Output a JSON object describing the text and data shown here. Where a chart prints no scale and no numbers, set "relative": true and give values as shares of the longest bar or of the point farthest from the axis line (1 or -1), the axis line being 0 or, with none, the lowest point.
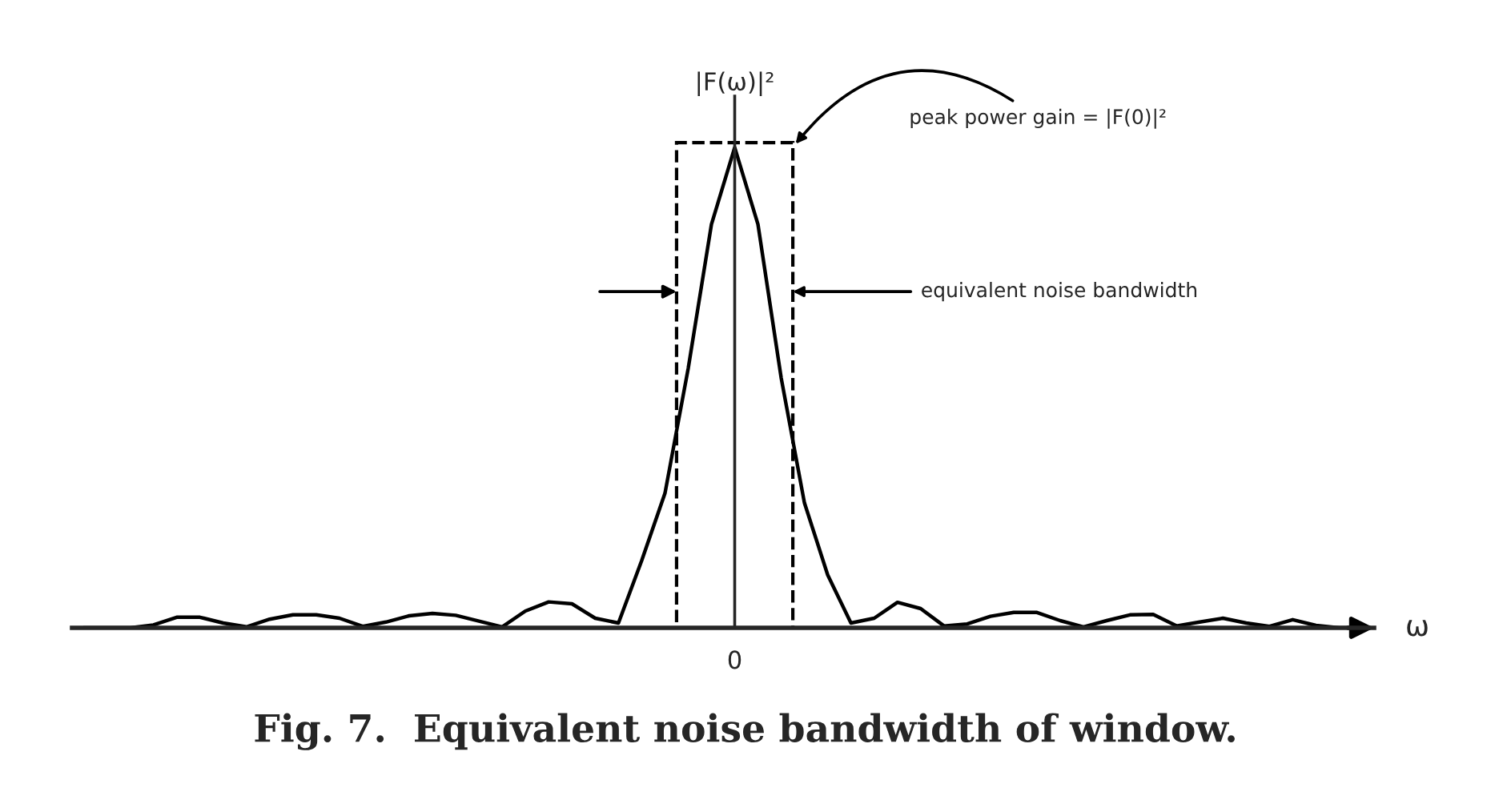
{
  "chart_data": {
    "type": "line",
    "relative": true,
    "title": "Fig. 7.  Equivalent noise bandwidth of window.",
    "xlabel": "ω",
    "ylabel": "|F(ω)|²",
    "categories": [
      null,
      null,
      null,
      null,
      null,
      null,
      null,
      null,
      null,
      null,
      null,
      null,
      null,
      null,
      null,
      null,
      null,
      null,
      null,
      null,
      null,
      null,
      null,
      null,
      null,
      null,
      null,
      null,
      null,
      null,
      null,
      null,
      null,
      null,
      null,
      null,
      null,
      null,
      null,
      null,
      null,
      null,
      null,
      null,
      null,
      null,
      null,
      null,
      null,
      null,
      null,
      null,
      null,
      null,
      null,
      null
    ],
    "series": [
      {
        "color": "#000000",
        "values": [
          0,
          0,
          0,
          0.006,
          0.022,
          0.022,
          0.01,
          0.002,
          0.018,
          0.027,
          0.027,
          0.02,
          0.003,
          0.012,
          0.025,
          0.03,
          0.026,
          0.014,
          0.002,
          0.035,
          0.054,
          0.05,
          0.02,
          0.01,
          0.14,
          0.28,
          0.54,
          0.84,
          1,
          0.84,
          0.52,
          0.26,
          0.11,
          0.01,
          0.02,
          0.053,
          0.04,
          0.004,
          0.008,
          0.024,
          0.032,
          0.032,
          0.015,
          0.002,
          0.015,
          0.027,
          0.028,
          0.004,
          0.012,
          0.02,
          0.01,
          0.003,
          0.017,
          0.005,
          0,
          0
        ]
      }
    ],
    "annotations": [
      "peak power gain = |F(0)|²",
      "equivalent noise bandwidth",
      "0"
    ],
    "legend": false,
    "marker": "none",
    "line_style": "solid"
  }
}
